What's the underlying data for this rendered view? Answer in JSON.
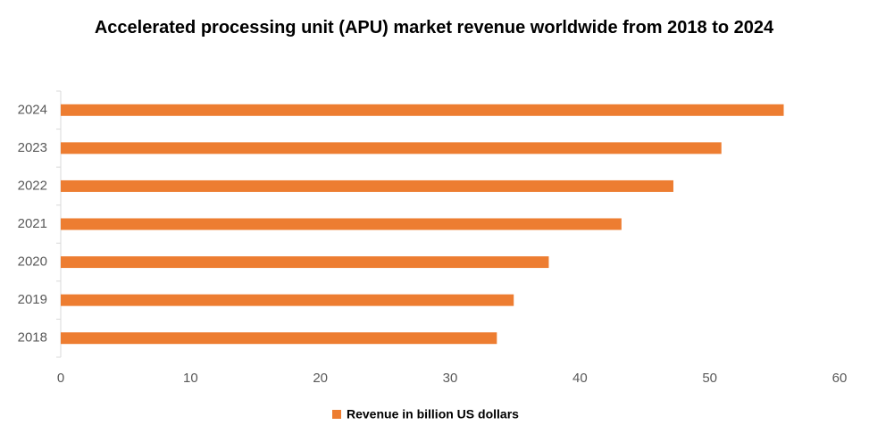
{
  "chart_data": {
    "type": "bar",
    "orientation": "horizontal",
    "title": "Accelerated processing unit (APU) market revenue worldwide from 2018 to 2024",
    "categories": [
      "2018",
      "2019",
      "2020",
      "2021",
      "2022",
      "2023",
      "2024"
    ],
    "series": [
      {
        "name": "Revenue in billion US dollars",
        "color": "#ed7d31",
        "values": [
          33.6,
          34.9,
          37.6,
          43.2,
          47.2,
          50.9,
          55.7
        ]
      }
    ],
    "xlim": [
      0,
      60
    ],
    "xticks": [
      0,
      10,
      20,
      30,
      40,
      50,
      60
    ],
    "grid": false,
    "legend": "bottom"
  }
}
